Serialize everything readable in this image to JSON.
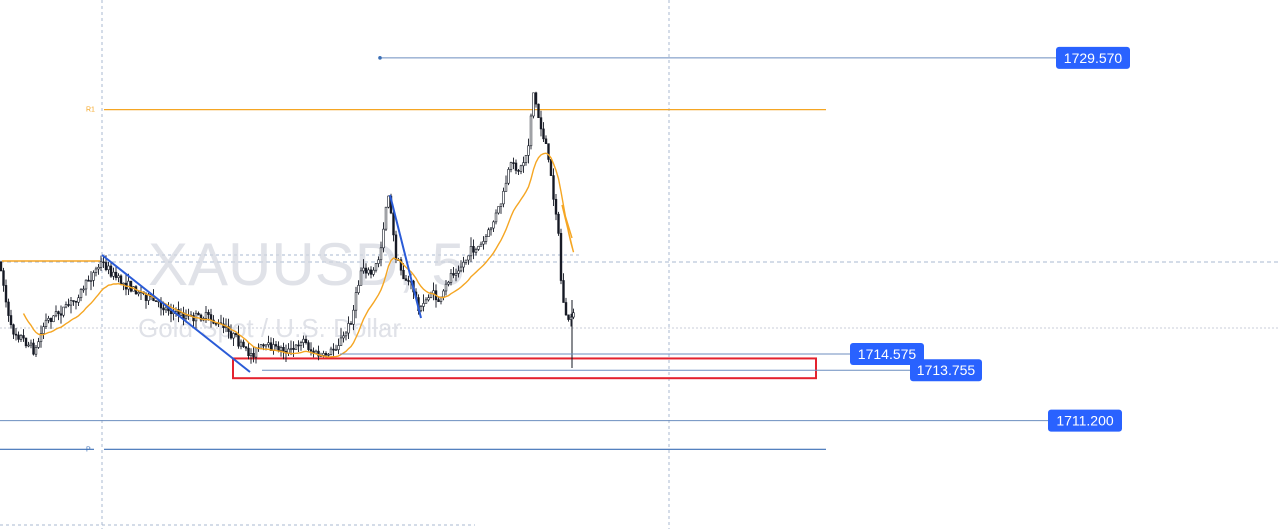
{
  "chart_data": {
    "type": "candlestick",
    "symbol_watermark": "XAUUSD, 5",
    "description_watermark": "Gold Spot / U.S. Dollar",
    "ylim": [
      1709.0,
      1732.0
    ],
    "levels": [
      {
        "name": "R1",
        "label": "R1",
        "price": 1726.95,
        "color": "#f5a623"
      },
      {
        "name": "P",
        "label": "P",
        "price": 1709.75,
        "color": "#3b6fb6"
      }
    ],
    "price_tags": [
      {
        "name": "price-tag-1729",
        "text": "1729.570",
        "price": 1729.57
      },
      {
        "name": "price-tag-1714",
        "text": "1714.575",
        "price": 1714.575
      },
      {
        "name": "price-tag-1713",
        "text": "1713.755",
        "price": 1713.755
      },
      {
        "name": "price-tag-1711",
        "text": "1711.200",
        "price": 1711.2
      }
    ],
    "support_zone": {
      "top": 1714.35,
      "bottom": 1713.35,
      "color": "#e4222e"
    },
    "colors": {
      "candle": "#131722",
      "moving_average": "#f5a623",
      "trendline": "#2a5bd7",
      "tag_bg": "#2962ff",
      "grid_dashed": "#a9b8d1"
    }
  }
}
